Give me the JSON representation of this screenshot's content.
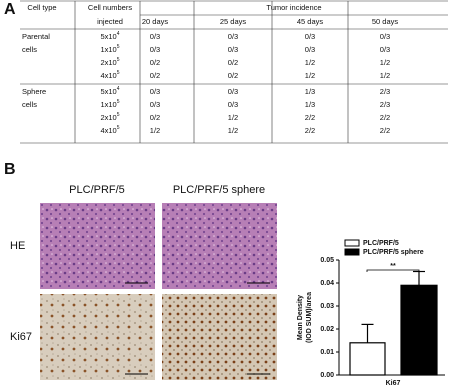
{
  "panel_a": {
    "label": "A",
    "header": {
      "cell_type": "Cell type",
      "cell_numbers": [
        "Cell numbers",
        "injected"
      ],
      "tumor_incidence": "Tumor incidence",
      "days": [
        "20 days",
        "25 days",
        "45 days",
        "50 days"
      ]
    },
    "groups": [
      {
        "name": [
          "Parental",
          "cells"
        ],
        "rows": [
          {
            "cells": {
              "base": "5x10",
              "exp": "4"
            },
            "values": [
              "0/3",
              "0/3",
              "0/3",
              "0/3"
            ]
          },
          {
            "cells": {
              "base": "1x10",
              "exp": "5"
            },
            "values": [
              "0/3",
              "0/3",
              "0/3",
              "0/3"
            ]
          },
          {
            "cells": {
              "base": "2x10",
              "exp": "5"
            },
            "values": [
              "0/2",
              "0/2",
              "1/2",
              "1/2"
            ]
          },
          {
            "cells": {
              "base": "4x10",
              "exp": "5"
            },
            "values": [
              "0/2",
              "0/2",
              "1/2",
              "1/2"
            ]
          }
        ]
      },
      {
        "name": [
          "Sphere",
          "cells"
        ],
        "rows": [
          {
            "cells": {
              "base": "5x10",
              "exp": "4"
            },
            "values": [
              "0/3",
              "0/3",
              "1/3",
              "2/3"
            ]
          },
          {
            "cells": {
              "base": "1x10",
              "exp": "5"
            },
            "values": [
              "0/3",
              "0/3",
              "1/3",
              "2/3"
            ]
          },
          {
            "cells": {
              "base": "2x10",
              "exp": "5"
            },
            "values": [
              "0/2",
              "1/2",
              "2/2",
              "2/2"
            ]
          },
          {
            "cells": {
              "base": "4x10",
              "exp": "5"
            },
            "values": [
              "1/2",
              "1/2",
              "2/2",
              "2/2"
            ]
          }
        ]
      }
    ]
  },
  "panel_b": {
    "label": "B",
    "columns": [
      "PLC/PRF/5",
      "PLC/PRF/5 sphere"
    ],
    "rows": [
      "HE",
      "Ki67"
    ]
  },
  "chart_data": {
    "type": "bar",
    "categories": [
      "Ki67"
    ],
    "y_label": [
      "Mean Density",
      "(IOD SUM)/area"
    ],
    "series": [
      {
        "name": "PLC/PRF/5",
        "color": "#ffffff",
        "values": [
          0.014
        ],
        "errors": [
          0.008
        ]
      },
      {
        "name": "PLC/PRF/5 sphere",
        "color": "#000000",
        "values": [
          0.039
        ],
        "errors": [
          0.006
        ]
      }
    ],
    "ylim": [
      0,
      0.05
    ],
    "yticks": [
      {
        "value": 0,
        "label": "0.00"
      },
      {
        "value": 0.01,
        "label": "0.01"
      },
      {
        "value": 0.02,
        "label": "0.02"
      },
      {
        "value": 0.03,
        "label": "0.03"
      },
      {
        "value": 0.04,
        "label": "0.04"
      },
      {
        "value": 0.05,
        "label": "0.05"
      }
    ],
    "significance": "**",
    "legend": "top"
  }
}
